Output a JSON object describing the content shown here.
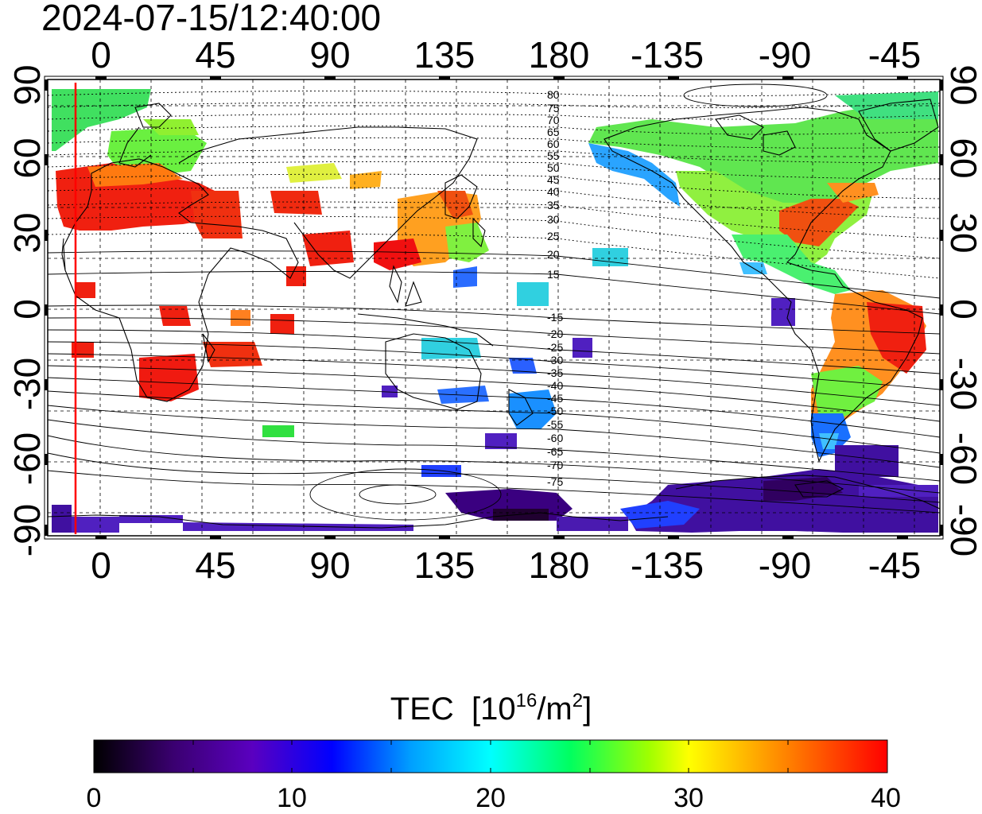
{
  "timestamp": "2024-07-15/12:40:00",
  "x_ticks": [
    "0",
    "45",
    "90",
    "135",
    "180",
    "-135",
    "-90",
    "-45"
  ],
  "y_ticks": [
    "90",
    "60",
    "30",
    "0",
    "-30",
    "-60",
    "-90"
  ],
  "contour_labels_north": [
    "80",
    "75",
    "70",
    "65",
    "60",
    "55",
    "50",
    "45",
    "40",
    "35",
    "30",
    "25",
    "20",
    "15"
  ],
  "contour_labels_south": [
    "-15",
    "-20",
    "-25",
    "-30",
    "-35",
    "-40",
    "-45",
    "-50",
    "-55",
    "-60",
    "-65",
    "-70",
    "-75"
  ],
  "colorbar": {
    "title_main": "TEC",
    "title_unit_a": "[10",
    "title_unit_exp": "16",
    "title_unit_b": "/m",
    "title_unit_exp2": "2",
    "title_unit_c": "]",
    "min": 0,
    "max": 40,
    "tick_labels": [
      "0",
      "10",
      "20",
      "30",
      "40"
    ],
    "stops": [
      "#000000",
      "#3a0070",
      "#5a00c0",
      "#0000ff",
      "#00a0ff",
      "#00ffff",
      "#00ff60",
      "#a0ff00",
      "#ffff00",
      "#ff8000",
      "#ff0000"
    ]
  },
  "terminator_color": "#ff0000",
  "contour_color": "#000000"
}
